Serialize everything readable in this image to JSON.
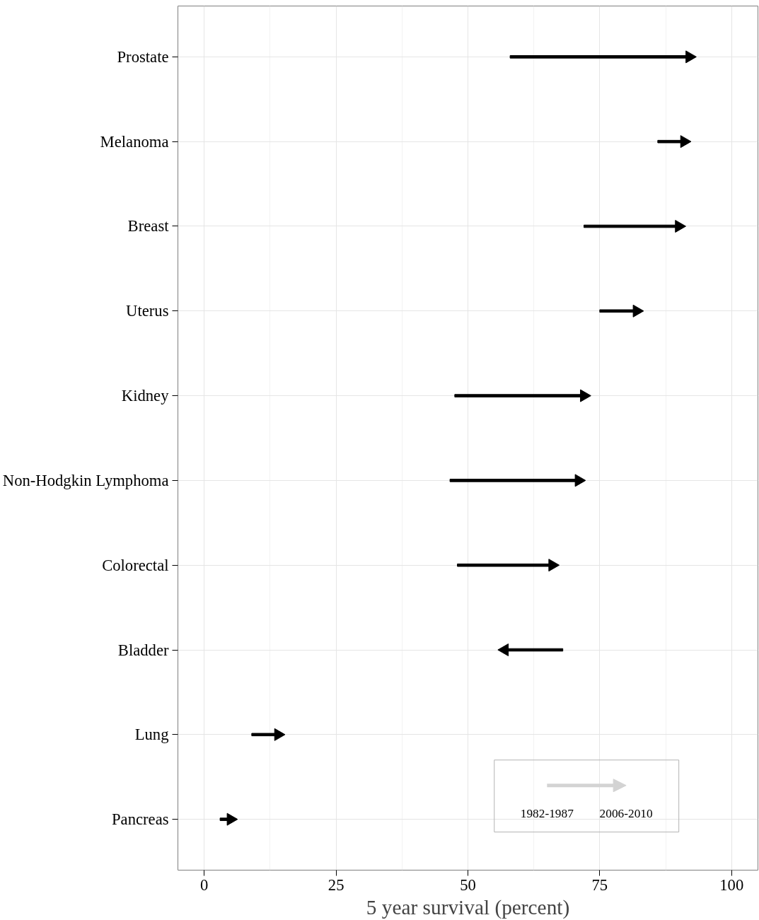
{
  "chart_data": {
    "type": "bar",
    "orientation": "horizontal",
    "xlabel": "5 year survival (percent)",
    "categories": [
      "Prostate",
      "Melanoma",
      "Breast",
      "Uterus",
      "Kidney",
      "Non-Hodgkin Lymphoma",
      "Colorectal",
      "Bladder",
      "Lung",
      "Pancreas"
    ],
    "series": [
      {
        "color": "#000000",
        "base": [
          58,
          86,
          72,
          75,
          47.5,
          46.6,
          48,
          68,
          9,
          3
        ],
        "values": [
          34,
          5,
          18,
          7,
          24.5,
          24.4,
          18,
          -11,
          5,
          2
        ]
      },
      {
        "type": "scatter",
        "color": "#000000",
        "marker": "triangle",
        "values": [
          92,
          91,
          90,
          82,
          72,
          71,
          66,
          57,
          14,
          5
        ]
      }
    ],
    "xlim": [
      -5,
      105
    ],
    "xticks": [
      0,
      25,
      50,
      75,
      100
    ],
    "grid": true,
    "annotations": [
      "1982-1987",
      "2006-2010"
    ]
  }
}
